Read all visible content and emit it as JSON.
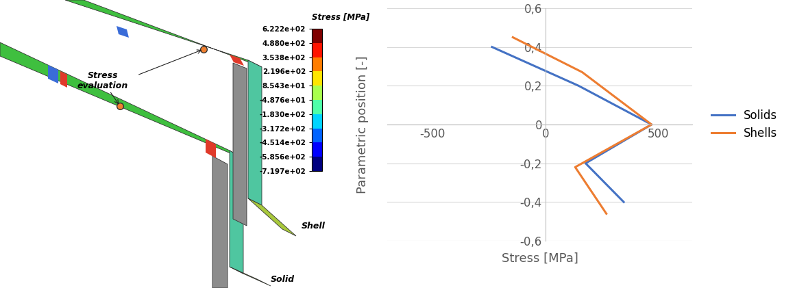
{
  "chart_data": {
    "type": "line",
    "xlabel": "Stress [MPa]",
    "ylabel": "Parametric position [-]",
    "xlim": [
      -700,
      650
    ],
    "xticks": [
      -500,
      0,
      500
    ],
    "ylim": [
      -0.6,
      0.6
    ],
    "yticks": [
      {
        "value": -0.6,
        "label": "-0,6"
      },
      {
        "value": -0.4,
        "label": "-0,4"
      },
      {
        "value": -0.2,
        "label": "-0,2"
      },
      0,
      {
        "value": 0.2,
        "label": "0,2"
      },
      {
        "value": 0.4,
        "label": "0,4"
      },
      {
        "value": 0.6,
        "label": "0,6"
      }
    ],
    "grid": true,
    "legend": "right",
    "series": [
      {
        "name": "Solids",
        "color": "#4472c4",
        "x": [
          -236,
          147,
          470,
          178,
          347
        ],
        "y": [
          0.4,
          0.2,
          0,
          -0.2,
          -0.4
        ]
      },
      {
        "name": "Shells",
        "color": "#ed7d31",
        "x": [
          -144,
          163,
          470,
          132,
          270
        ],
        "y": [
          0.45,
          0.27,
          0,
          -0.22,
          -0.46
        ]
      }
    ]
  },
  "contour_plot": {
    "colorbar_title": "Stress [MPa]",
    "clim": [
      -719.7,
      622.2
    ],
    "colorbar_ticks": [
      {
        "value": 622.2,
        "label": "6.222e+02"
      },
      {
        "value": 488.0,
        "label": "4.880e+02"
      },
      {
        "value": 353.8,
        "label": "3.538e+02"
      },
      {
        "value": 219.6,
        "label": "2.196e+02"
      },
      {
        "value": 85.43,
        "label": "8.543e+01"
      },
      {
        "value": -48.76,
        "label": "-4.876e+01"
      },
      {
        "value": -183.0,
        "label": "-1.830e+02"
      },
      {
        "value": -317.2,
        "label": "-3.172e+02"
      },
      {
        "value": -451.4,
        "label": "-4.514e+02"
      },
      {
        "value": -585.6,
        "label": "-5.856e+02"
      },
      {
        "value": -719.7,
        "label": "-7.197e+02"
      }
    ],
    "annotation": "Stress\nevaluation",
    "shell_label": "Shell",
    "solid_label": "Solid"
  }
}
